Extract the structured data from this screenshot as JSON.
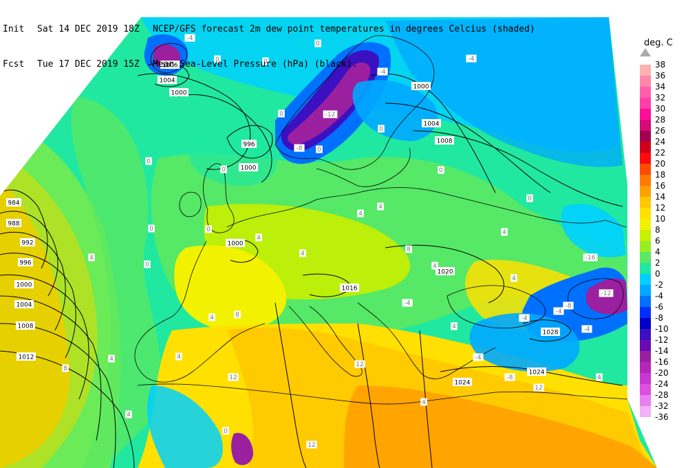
{
  "header": {
    "line1": {
      "key": "Init",
      "date": "Sat 14 DEC 2019 18Z",
      "desc": "NCEP/GFS forecast 2m dew point temperatures in degrees Celcius (shaded)"
    },
    "line2": {
      "key": "Fcst",
      "date": "Tue 17 DEC 2019 15Z",
      "desc": "Mean Sea-Level Pressure (hPa) (black)."
    }
  },
  "legend": {
    "title": "deg. C",
    "arrow_up_icon": "triangle-up",
    "colors": [
      "#ffb0b0",
      "#ff88a8",
      "#ff5fa8",
      "#ff3fa8",
      "#ff0f98",
      "#d60a78",
      "#a00050",
      "#d0001a",
      "#ff0a10",
      "#ff4a00",
      "#ff7a00",
      "#ffa000",
      "#ffc800",
      "#ffe000",
      "#f2f200",
      "#c8f000",
      "#9aee20",
      "#5ce860",
      "#20e8a0",
      "#00d0ff",
      "#00a8ff",
      "#0070ff",
      "#0030ff",
      "#0000c8",
      "#3a10c0",
      "#6a0ab0",
      "#9a20a0",
      "#b428b8",
      "#c838d0",
      "#dc50e0",
      "#e880f0",
      "#f4b0f8"
    ],
    "labels": [
      "38",
      "36",
      "34",
      "32",
      "30",
      "28",
      "26",
      "24",
      "22",
      "20",
      "18",
      "16",
      "14",
      "12",
      "10",
      "8",
      "6",
      "4",
      "2",
      "0",
      "-2",
      "-4",
      "-6",
      "-8",
      "-10",
      "-12",
      "-14",
      "-16",
      "-20",
      "-24",
      "-28",
      "-32",
      "-36"
    ]
  },
  "map": {
    "shading": {
      "very_cold": "#9a20a0",
      "cold": "#3a10c0",
      "blue": "#0070ff",
      "light_blue": "#00a8ff",
      "cyan": "#00d0ff",
      "aqua": "#20e8a0",
      "green": "#5ce860",
      "yellow_green": "#9aee20",
      "lime": "#c8f000",
      "yellow": "#f2f200",
      "gold": "#ffe000",
      "amber": "#ffc800",
      "orange": "#ffa000"
    },
    "isobar_labels": [
      "1006",
      "1004",
      "1000",
      "996",
      "1000",
      "984",
      "988",
      "992",
      "996",
      "1000",
      "1004",
      "1008",
      "1012",
      "1000",
      "1008",
      "1004",
      "1000",
      "1016",
      "1020",
      "1028",
      "1024",
      "1024"
    ],
    "value_labels": [
      "-4",
      "0",
      "0",
      "0",
      "-4",
      "-4",
      "0",
      "0",
      "-12",
      "0",
      "-8",
      "0",
      "0",
      "0",
      "4",
      "4",
      "0",
      "0",
      "4",
      "4",
      "8",
      "4",
      "0",
      "4",
      "0",
      "4",
      "4",
      "-8",
      "-16",
      "-12",
      "-4",
      "-4",
      "-4",
      "-8",
      "-4",
      "-4",
      "4",
      "8",
      "12",
      "4",
      "8",
      "12",
      "4",
      "4",
      "12",
      "4",
      "0",
      "12",
      "4",
      "4"
    ]
  }
}
